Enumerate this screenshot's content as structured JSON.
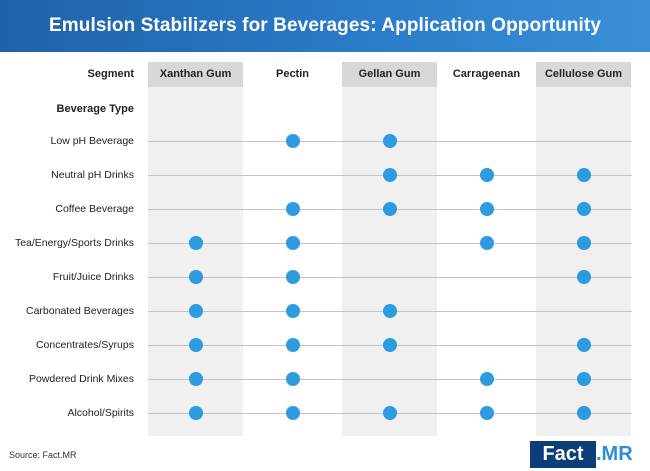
{
  "title": "Emulsion Stabilizers for Beverages: Application Opportunity",
  "header_row_label": "Segment",
  "row_group_label": "Beverage Type",
  "source": "Source: Fact.MR",
  "logo": {
    "part1": "Fact",
    "part2": ".MR"
  },
  "colors": {
    "dot": "#2c9be0",
    "banner": "#2a7bc8",
    "logo_dark": "#0d3d7a"
  },
  "chart_data": {
    "type": "table",
    "title": "Emulsion Stabilizers for Beverages: Application Opportunity",
    "columns": [
      "Xanthan Gum",
      "Pectin",
      "Gellan Gum",
      "Carrageenan",
      "Cellulose Gum"
    ],
    "rows": [
      "Low pH Beverage",
      "Neutral pH Drinks",
      "Coffee Beverage",
      "Tea/Energy/Sports Drinks",
      "Fruit/Juice Drinks",
      "Carbonated Beverages",
      "Concentrates/Syrups",
      "Powdered Drink Mixes",
      "Alcohol/Spirits"
    ],
    "matrix": [
      [
        0,
        1,
        1,
        0,
        0
      ],
      [
        0,
        0,
        1,
        1,
        1
      ],
      [
        0,
        1,
        1,
        1,
        1
      ],
      [
        1,
        1,
        0,
        1,
        1
      ],
      [
        1,
        1,
        0,
        0,
        1
      ],
      [
        1,
        1,
        1,
        0,
        0
      ],
      [
        1,
        1,
        1,
        0,
        1
      ],
      [
        1,
        1,
        0,
        1,
        1
      ],
      [
        1,
        1,
        1,
        1,
        1
      ]
    ]
  }
}
